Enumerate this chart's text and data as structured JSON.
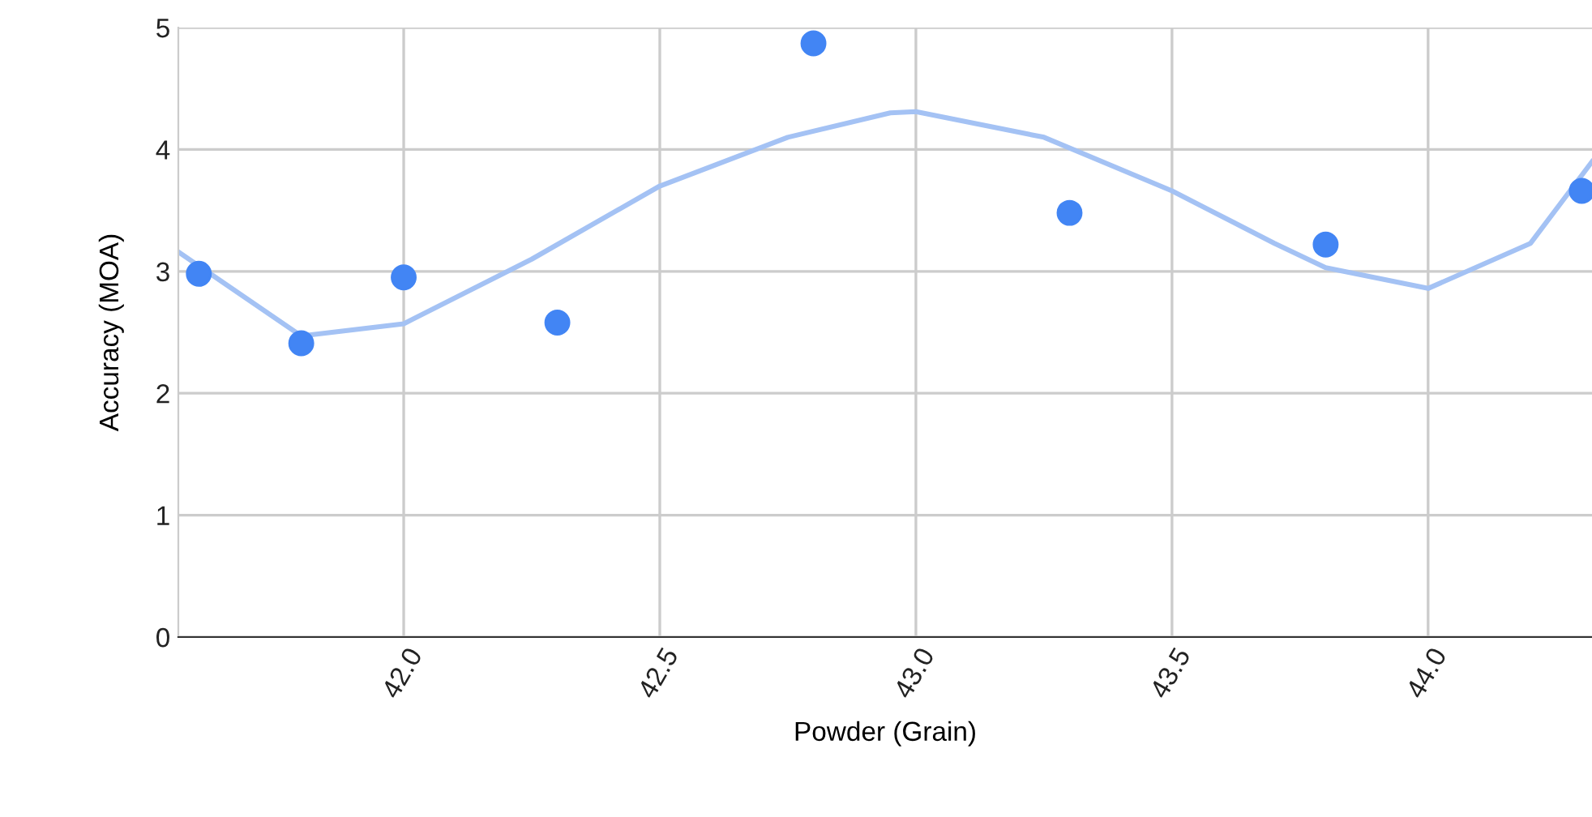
{
  "chart_data": {
    "type": "scatter",
    "xlabel": "Powder (Grain)",
    "ylabel": "Accuracy (MOA)",
    "xlim": [
      41.56,
      44.32
    ],
    "xticks": [
      {
        "value": 42.0,
        "label": "42.0"
      },
      {
        "value": 42.5,
        "label": "42.5"
      },
      {
        "value": 43.0,
        "label": "43.0"
      },
      {
        "value": 43.5,
        "label": "43.5"
      },
      {
        "value": 44.0,
        "label": "44.0"
      }
    ],
    "ylim": [
      0,
      5
    ],
    "yticks": [
      0,
      1,
      2,
      3,
      4,
      5
    ],
    "grid": true,
    "marker": "circle",
    "series": [
      {
        "type": "line",
        "color": "#a4c2f4",
        "marker": "none",
        "line_style": "solid",
        "x": [
          41.56,
          41.8,
          42.0,
          42.25,
          42.5,
          42.75,
          42.95,
          43.0,
          43.25,
          43.5,
          43.7,
          43.8,
          44.0,
          44.2,
          44.32
        ],
        "values": [
          3.16,
          2.47,
          2.57,
          3.1,
          3.7,
          4.1,
          4.3,
          4.31,
          4.1,
          3.66,
          3.23,
          3.03,
          2.86,
          3.23,
          3.9
        ]
      },
      {
        "color": "#4285f4",
        "x": [
          41.6,
          41.8,
          42.0,
          42.3,
          42.8,
          43.3,
          43.8,
          44.3
        ],
        "values": [
          2.98,
          2.41,
          2.95,
          2.58,
          4.87,
          3.48,
          3.22,
          3.66
        ]
      }
    ]
  }
}
